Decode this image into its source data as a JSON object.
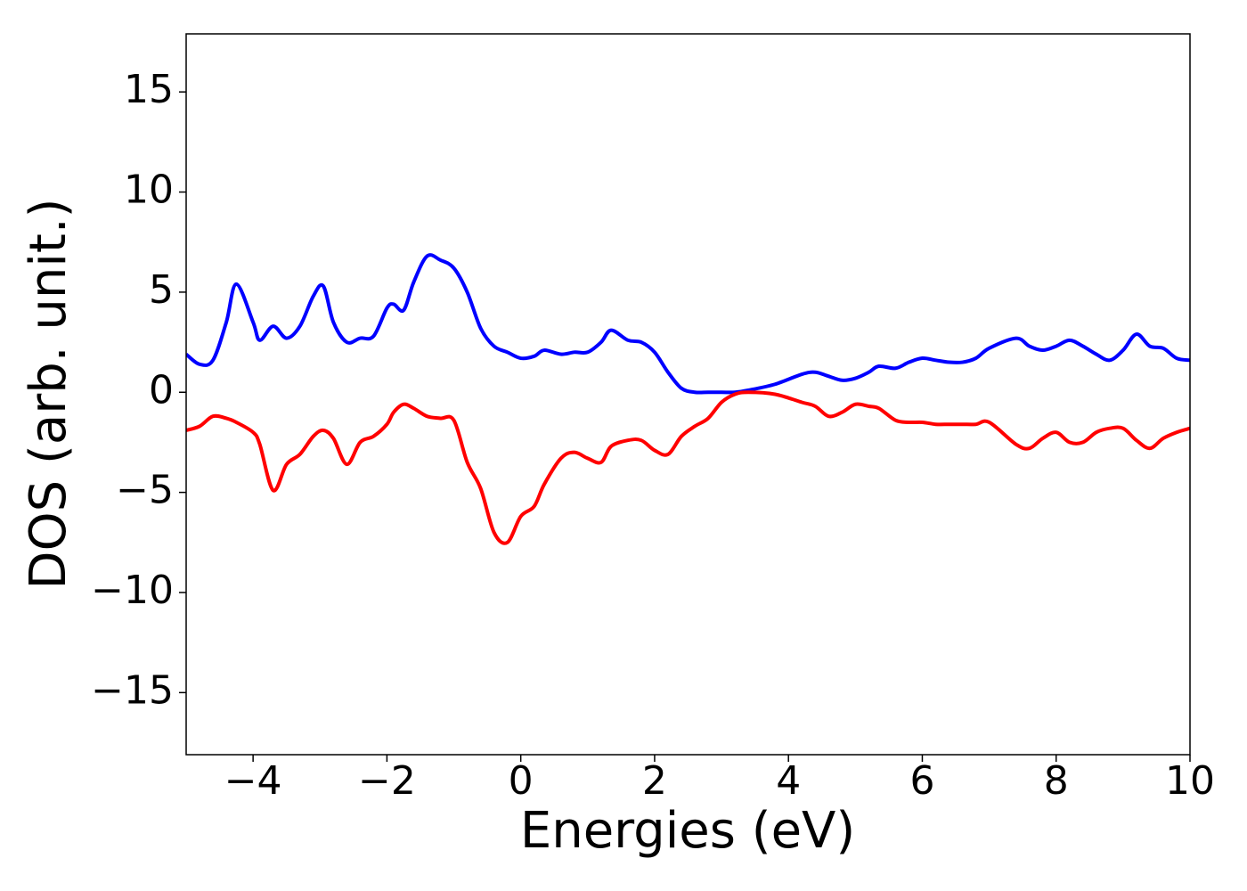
{
  "chart_data": {
    "type": "line",
    "xlabel": "Energies (eV)",
    "ylabel": "DOS (arb. unit.)",
    "xlim": [
      -5,
      10
    ],
    "ylim": [
      -18.1,
      17.9
    ],
    "xticks": [
      {
        "value": -4,
        "label": "−4"
      },
      {
        "value": -2,
        "label": "−2"
      },
      0,
      2,
      4,
      6,
      8,
      10
    ],
    "yticks": [
      {
        "value": -15,
        "label": "−15"
      },
      {
        "value": -10,
        "label": "−10"
      },
      {
        "value": -5,
        "label": "−5"
      },
      0,
      5,
      10,
      15
    ],
    "grid": false,
    "x": [
      -5,
      -4.8,
      -4.6,
      -4.4,
      -4.25,
      -4,
      -3.9,
      -3.7,
      -3.5,
      -3.3,
      -3.1,
      -2.95,
      -2.8,
      -2.6,
      -2.4,
      -2.2,
      -2,
      -1.9,
      -1.75,
      -1.6,
      -1.4,
      -1.2,
      -1,
      -0.8,
      -0.6,
      -0.4,
      -0.2,
      0,
      0.2,
      0.35,
      0.6,
      0.8,
      1,
      1.2,
      1.35,
      1.6,
      1.8,
      2,
      2.2,
      2.4,
      2.6,
      2.8,
      3,
      3.2,
      3.4,
      3.8,
      4.2,
      4.4,
      4.6,
      4.8,
      5,
      5.2,
      5.35,
      5.6,
      5.8,
      6,
      6.2,
      6.4,
      6.6,
      6.8,
      7,
      7.4,
      7.6,
      7.8,
      8,
      8.2,
      8.4,
      8.6,
      8.8,
      9,
      9.2,
      9.4,
      9.6,
      9.8,
      10
    ],
    "series": [
      {
        "color": "#0000ff",
        "values": [
          1.9,
          1.4,
          1.6,
          3.5,
          5.4,
          3.5,
          2.6,
          3.3,
          2.7,
          3.3,
          4.8,
          5.3,
          3.5,
          2.5,
          2.7,
          2.8,
          4.2,
          4.4,
          4.1,
          5.5,
          6.8,
          6.6,
          6.2,
          5.0,
          3.2,
          2.3,
          2.0,
          1.7,
          1.8,
          2.1,
          1.9,
          2.0,
          2.0,
          2.5,
          3.1,
          2.6,
          2.5,
          2.0,
          1.0,
          0.2,
          0,
          0,
          0,
          0,
          0.1,
          0.4,
          0.9,
          1.0,
          0.8,
          0.6,
          0.7,
          1.0,
          1.3,
          1.2,
          1.5,
          1.7,
          1.6,
          1.5,
          1.5,
          1.7,
          2.2,
          2.7,
          2.3,
          2.1,
          2.3,
          2.6,
          2.3,
          1.9,
          1.6,
          2.1,
          2.9,
          2.3,
          2.2,
          1.7,
          1.6
        ]
      },
      {
        "color": "#ff0000",
        "values": [
          -1.9,
          -1.7,
          -1.2,
          -1.3,
          -1.5,
          -2.0,
          -2.6,
          -4.9,
          -3.6,
          -3.1,
          -2.2,
          -1.9,
          -2.3,
          -3.6,
          -2.5,
          -2.2,
          -1.6,
          -1.0,
          -0.6,
          -0.8,
          -1.2,
          -1.3,
          -1.4,
          -3.5,
          -4.8,
          -7.0,
          -7.5,
          -6.2,
          -5.7,
          -4.6,
          -3.3,
          -3.0,
          -3.3,
          -3.5,
          -2.7,
          -2.4,
          -2.4,
          -2.9,
          -3.1,
          -2.2,
          -1.7,
          -1.3,
          -0.5,
          -0.1,
          0,
          -0.1,
          -0.5,
          -0.7,
          -1.2,
          -1.0,
          -0.6,
          -0.7,
          -0.8,
          -1.4,
          -1.5,
          -1.5,
          -1.6,
          -1.6,
          -1.6,
          -1.6,
          -1.5,
          -2.6,
          -2.8,
          -2.3,
          -2.0,
          -2.5,
          -2.5,
          -2.0,
          -1.8,
          -1.8,
          -2.4,
          -2.8,
          -2.3,
          -2.0,
          -1.8
        ]
      }
    ]
  }
}
